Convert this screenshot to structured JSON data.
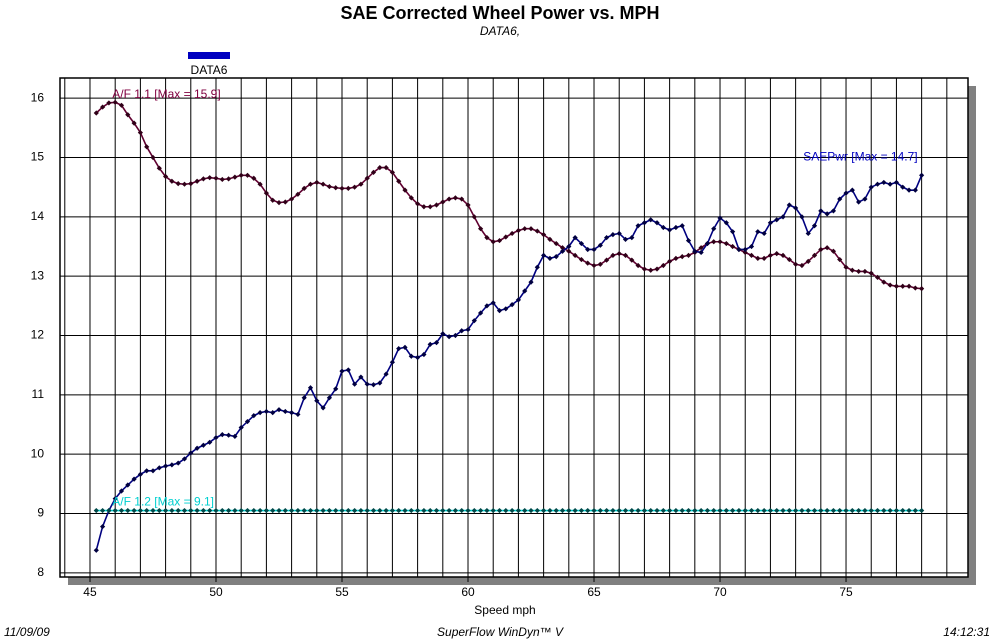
{
  "chart_data": {
    "type": "line",
    "title": "SAE Corrected Wheel Power vs. MPH",
    "subtitle": "DATA6,",
    "legend": {
      "label": "DATA6",
      "color": "#0000c0"
    },
    "xlabel": "Speed   mph",
    "footer": {
      "left": "11/09/09",
      "center": "SuperFlow WinDyn™ V",
      "right": "14:12:31"
    },
    "xlim": [
      43.81,
      79.84
    ],
    "ylim": [
      7.93,
      16.34
    ],
    "xticks": [
      45,
      50,
      55,
      60,
      65,
      70,
      75
    ],
    "yticks": [
      8,
      9,
      10,
      11,
      12,
      13,
      14,
      15,
      16
    ],
    "xgrid": [
      44,
      45,
      46,
      47,
      48,
      49,
      50,
      51,
      52,
      53,
      54,
      55,
      56,
      57,
      58,
      59,
      60,
      61,
      62,
      63,
      64,
      65,
      66,
      67,
      68,
      69,
      70,
      71,
      72,
      73,
      74,
      75,
      76,
      77,
      78,
      79
    ],
    "grid": true,
    "x": [
      45.25,
      45.5,
      45.75,
      46,
      46.25,
      46.5,
      46.75,
      47,
      47.25,
      47.5,
      47.75,
      48,
      48.25,
      48.5,
      48.75,
      49,
      49.25,
      49.5,
      49.75,
      50,
      50.25,
      50.5,
      50.75,
      51,
      51.25,
      51.5,
      51.75,
      52,
      52.25,
      52.5,
      52.75,
      53,
      53.25,
      53.5,
      53.75,
      54,
      54.25,
      54.5,
      54.75,
      55,
      55.25,
      55.5,
      55.75,
      56,
      56.25,
      56.5,
      56.75,
      57,
      57.25,
      57.5,
      57.75,
      58,
      58.25,
      58.5,
      58.75,
      59,
      59.25,
      59.5,
      59.75,
      60,
      60.25,
      60.5,
      60.75,
      61,
      61.25,
      61.5,
      61.75,
      62,
      62.25,
      62.5,
      62.75,
      63,
      63.25,
      63.5,
      63.75,
      64,
      64.25,
      64.5,
      64.75,
      65,
      65.25,
      65.5,
      65.75,
      66,
      66.25,
      66.5,
      66.75,
      67,
      67.25,
      67.5,
      67.75,
      68,
      68.25,
      68.5,
      68.75,
      69,
      69.25,
      69.5,
      69.75,
      70,
      70.25,
      70.5,
      70.75,
      71,
      71.25,
      71.5,
      71.75,
      72,
      72.25,
      72.5,
      72.75,
      73,
      73.25,
      73.5,
      73.75,
      74,
      74.25,
      74.5,
      74.75,
      75,
      75.25,
      75.5,
      75.75,
      76,
      76.25,
      76.5,
      76.75,
      77,
      77.25,
      77.5,
      77.75,
      78
    ],
    "series": [
      {
        "label": "A/F 1.1 [Max = 15.9]",
        "color": "#600030",
        "label_color": "#800040",
        "marker_color": "#300018",
        "values": [
          15.75,
          15.85,
          15.92,
          15.93,
          15.88,
          15.72,
          15.58,
          15.42,
          15.18,
          15.0,
          14.82,
          14.68,
          14.6,
          14.56,
          14.55,
          14.56,
          14.6,
          14.64,
          14.66,
          14.65,
          14.63,
          14.64,
          14.67,
          14.7,
          14.7,
          14.65,
          14.55,
          14.4,
          14.28,
          14.24,
          14.25,
          14.3,
          14.38,
          14.48,
          14.55,
          14.58,
          14.55,
          14.51,
          14.49,
          14.48,
          14.48,
          14.5,
          14.55,
          14.65,
          14.75,
          14.83,
          14.83,
          14.75,
          14.6,
          14.45,
          14.32,
          14.22,
          14.17,
          14.17,
          14.2,
          14.25,
          14.3,
          14.32,
          14.3,
          14.2,
          14.0,
          13.8,
          13.65,
          13.58,
          13.6,
          13.66,
          13.72,
          13.77,
          13.8,
          13.8,
          13.76,
          13.7,
          13.62,
          13.55,
          13.48,
          13.42,
          13.35,
          13.28,
          13.22,
          13.18,
          13.2,
          13.27,
          13.35,
          13.38,
          13.35,
          13.27,
          13.18,
          13.12,
          13.1,
          13.12,
          13.18,
          13.25,
          13.3,
          13.33,
          13.35,
          13.4,
          13.48,
          13.55,
          13.58,
          13.58,
          13.55,
          13.5,
          13.45,
          13.4,
          13.35,
          13.3,
          13.3,
          13.35,
          13.38,
          13.35,
          13.28,
          13.2,
          13.18,
          13.25,
          13.35,
          13.45,
          13.48,
          13.42,
          13.28,
          13.15,
          13.1,
          13.08,
          13.08,
          13.05,
          12.98,
          12.9,
          12.85,
          12.83,
          12.83,
          12.83,
          12.8,
          12.79
        ]
      },
      {
        "label": "SAEPwr [Max = 14.7]",
        "color": "#000080",
        "label_color": "#0000c0",
        "marker_color": "#000040",
        "values": [
          8.38,
          8.78,
          9.05,
          9.25,
          9.38,
          9.48,
          9.58,
          9.66,
          9.72,
          9.72,
          9.77,
          9.8,
          9.82,
          9.85,
          9.92,
          10.02,
          10.1,
          10.15,
          10.2,
          10.28,
          10.33,
          10.32,
          10.3,
          10.45,
          10.55,
          10.65,
          10.7,
          10.72,
          10.7,
          10.75,
          10.72,
          10.7,
          10.67,
          10.95,
          11.12,
          10.9,
          10.78,
          10.95,
          11.1,
          11.4,
          11.42,
          11.18,
          11.3,
          11.18,
          11.17,
          11.2,
          11.35,
          11.55,
          11.78,
          11.8,
          11.65,
          11.63,
          11.68,
          11.85,
          11.88,
          12.03,
          11.98,
          12.0,
          12.08,
          12.1,
          12.25,
          12.38,
          12.5,
          12.55,
          12.42,
          12.45,
          12.52,
          12.6,
          12.75,
          12.9,
          13.15,
          13.35,
          13.3,
          13.33,
          13.42,
          13.5,
          13.65,
          13.55,
          13.45,
          13.45,
          13.52,
          13.65,
          13.7,
          13.72,
          13.62,
          13.65,
          13.85,
          13.9,
          13.95,
          13.9,
          13.82,
          13.78,
          13.82,
          13.85,
          13.6,
          13.42,
          13.4,
          13.55,
          13.8,
          13.98,
          13.9,
          13.75,
          13.45,
          13.45,
          13.5,
          13.75,
          13.72,
          13.9,
          13.95,
          14.0,
          14.2,
          14.15,
          14.0,
          13.72,
          13.85,
          14.1,
          14.05,
          14.1,
          14.3,
          14.4,
          14.45,
          14.25,
          14.3,
          14.5,
          14.55,
          14.58,
          14.55,
          14.58,
          14.5,
          14.45,
          14.45,
          14.7
        ]
      },
      {
        "label": "A/F 1.2 [Max = 9.1]",
        "color": "#00e0e0",
        "label_color": "#00d0d0",
        "marker_color": "#004848",
        "values": [
          9.05,
          9.05,
          9.05,
          9.05,
          9.05,
          9.05,
          9.05,
          9.05,
          9.05,
          9.05,
          9.05,
          9.05,
          9.05,
          9.05,
          9.05,
          9.05,
          9.05,
          9.05,
          9.05,
          9.05,
          9.05,
          9.05,
          9.05,
          9.05,
          9.05,
          9.05,
          9.05,
          9.05,
          9.05,
          9.05,
          9.05,
          9.05,
          9.05,
          9.05,
          9.05,
          9.05,
          9.05,
          9.05,
          9.05,
          9.05,
          9.05,
          9.05,
          9.05,
          9.05,
          9.05,
          9.05,
          9.05,
          9.05,
          9.05,
          9.05,
          9.05,
          9.05,
          9.05,
          9.05,
          9.05,
          9.05,
          9.05,
          9.05,
          9.05,
          9.05,
          9.05,
          9.05,
          9.05,
          9.05,
          9.05,
          9.05,
          9.05,
          9.05,
          9.05,
          9.05,
          9.05,
          9.05,
          9.05,
          9.05,
          9.05,
          9.05,
          9.05,
          9.05,
          9.05,
          9.05,
          9.05,
          9.05,
          9.05,
          9.05,
          9.05,
          9.05,
          9.05,
          9.05,
          9.05,
          9.05,
          9.05,
          9.05,
          9.05,
          9.05,
          9.05,
          9.05,
          9.05,
          9.05,
          9.05,
          9.05,
          9.05,
          9.05,
          9.05,
          9.05,
          9.05,
          9.05,
          9.05,
          9.05,
          9.05,
          9.05,
          9.05,
          9.05,
          9.05,
          9.05,
          9.05,
          9.05,
          9.05,
          9.05,
          9.05,
          9.05,
          9.05,
          9.05,
          9.05,
          9.05,
          9.05,
          9.05,
          9.05,
          9.05,
          9.05,
          9.05,
          9.05,
          9.05
        ]
      }
    ]
  }
}
